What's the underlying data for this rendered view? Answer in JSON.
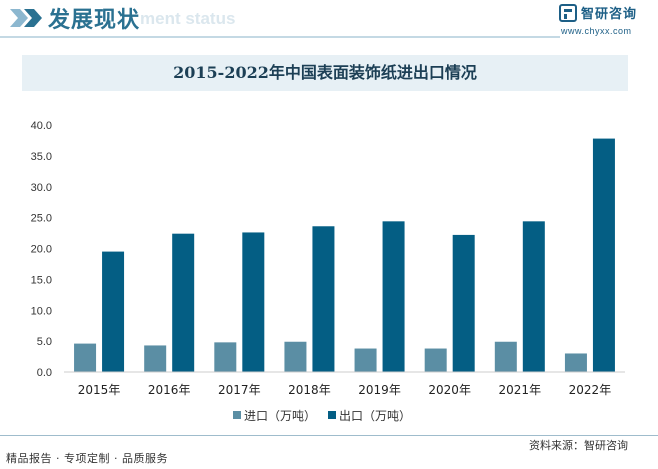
{
  "header": {
    "title": "发展现状",
    "ghost_text": "ment status"
  },
  "brand": {
    "logo_text": "智研咨询",
    "url": "www.chyxx.com",
    "color": "#1d5f86"
  },
  "footer": {
    "left_text": "精品报告 · 专项定制 · 品质服务",
    "source": "资料来源：智研咨询"
  },
  "chart_data": {
    "type": "bar",
    "title": "2015-2022年中国表面装饰纸进出口情况",
    "categories": [
      "2015年",
      "2016年",
      "2017年",
      "2018年",
      "2019年",
      "2020年",
      "2021年",
      "2022年"
    ],
    "series": [
      {
        "name": "进口（万吨）",
        "color": "#5b8ea4",
        "values": [
          4.6,
          4.3,
          4.8,
          4.9,
          3.8,
          3.8,
          4.9,
          3.0
        ]
      },
      {
        "name": "出口（万吨）",
        "color": "#045e84",
        "values": [
          19.5,
          22.4,
          22.6,
          23.6,
          24.4,
          22.2,
          24.4,
          37.8
        ]
      }
    ],
    "yticks": [
      "0.0",
      "5.0",
      "10.0",
      "15.0",
      "20.0",
      "25.0",
      "30.0",
      "35.0",
      "40.0"
    ],
    "ylim": [
      0,
      40
    ],
    "xlabel": "",
    "ylabel": "",
    "grid": false,
    "legend_position": "bottom"
  }
}
